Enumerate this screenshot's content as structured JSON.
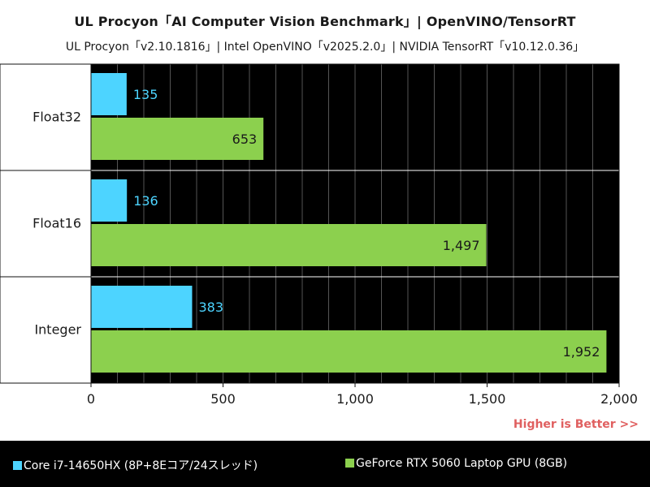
{
  "header": {
    "title": "UL Procyon「AI Computer Vision Benchmark」| OpenVINO/TensorRT",
    "subtitle": "UL Procyon「v2.10.1816」| Intel OpenVINO「v2025.2.0」| NVIDIA TensorRT「v10.12.0.36」"
  },
  "note": "Higher is Better >>",
  "colors": {
    "series_cpu": "#4dd4ff",
    "series_gpu": "#8cd04e",
    "note": "#e06060",
    "plot_bg": "#000000",
    "grid": "#555555"
  },
  "chart_data": {
    "type": "bar",
    "orientation": "horizontal",
    "categories": [
      "Float32",
      "Float16",
      "Integer"
    ],
    "series": [
      {
        "name": "Core i7-14650HX (8P+8Eコア/24スレッド)",
        "values": [
          135,
          136,
          383
        ],
        "labels": [
          "135",
          "136",
          "383"
        ]
      },
      {
        "name": "GeForce RTX 5060 Laptop GPU (8GB)",
        "values": [
          653,
          1497,
          1952
        ],
        "labels": [
          "653",
          "1,497",
          "1,952"
        ]
      }
    ],
    "xlim": [
      0,
      2000
    ],
    "xticks": [
      0,
      500,
      1000,
      1500,
      2000
    ],
    "xtick_labels": [
      "0",
      "500",
      "1,000",
      "1,500",
      "2,000"
    ],
    "grid": true,
    "legend_position": "bottom"
  }
}
